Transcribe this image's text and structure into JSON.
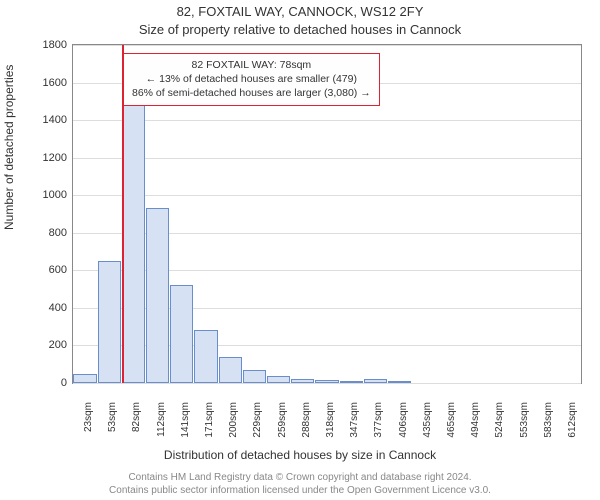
{
  "titles": {
    "address": "82, FOXTAIL WAY, CANNOCK, WS12 2FY",
    "subtitle": "Size of property relative to detached houses in Cannock"
  },
  "axes": {
    "ylabel": "Number of detached properties",
    "xlabel": "Distribution of detached houses by size in Cannock",
    "ylim": [
      0,
      1800
    ],
    "ytick_step": 200,
    "yticks": [
      0,
      200,
      400,
      600,
      800,
      1000,
      1200,
      1400,
      1600,
      1800
    ],
    "grid_color": "#dddddd",
    "border_color": "#888888"
  },
  "chart": {
    "type": "histogram",
    "bar_fill": "#d6e2f3",
    "bar_stroke": "#6a8ecb",
    "background": "#ffffff",
    "categories": [
      "23sqm",
      "53sqm",
      "82sqm",
      "112sqm",
      "141sqm",
      "171sqm",
      "200sqm",
      "229sqm",
      "259sqm",
      "288sqm",
      "318sqm",
      "347sqm",
      "377sqm",
      "406sqm",
      "435sqm",
      "465sqm",
      "494sqm",
      "524sqm",
      "553sqm",
      "583sqm",
      "612sqm"
    ],
    "values": [
      50,
      650,
      1480,
      930,
      520,
      280,
      140,
      70,
      35,
      20,
      15,
      10,
      20,
      8,
      0,
      0,
      0,
      0,
      0,
      0,
      0
    ]
  },
  "reference": {
    "label_sqm": "82sqm",
    "line_color": "#dd2233",
    "line_width": 2
  },
  "annotation": {
    "line1": "82 FOXTAIL WAY: 78sqm",
    "line2": "← 13% of detached houses are smaller (479)",
    "line3": "86% of semi-detached houses are larger (3,080) →",
    "border_color": "#dd2233",
    "fontsize": 10.5
  },
  "footer": {
    "line1": "Contains HM Land Registry data © Crown copyright and database right 2024.",
    "line2": "Contains public sector information licensed under the Open Government Licence v3.0."
  }
}
